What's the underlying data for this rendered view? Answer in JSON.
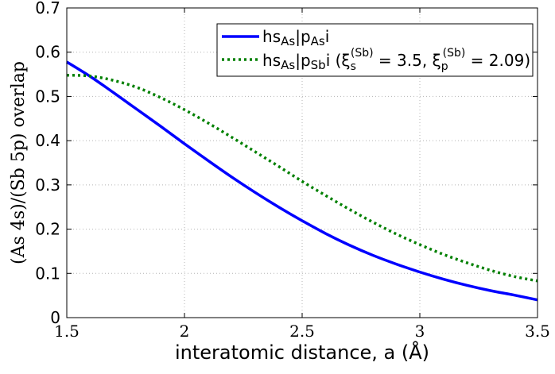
{
  "chart_data": {
    "type": "line",
    "xlabel": "interatomic distance, a (Å)",
    "ylabel": "(As 4s)/(Sb 5p) overlap",
    "xlim": [
      1.5,
      3.5
    ],
    "ylim": [
      0,
      0.7
    ],
    "x_ticks": [
      "1.5",
      "2",
      "2.5",
      "3",
      "3.5"
    ],
    "y_ticks": [
      "0",
      "0.1",
      "0.2",
      "0.3",
      "0.4",
      "0.5",
      "0.6",
      "0.7"
    ],
    "grid": true,
    "legend_position": "top-right",
    "series": [
      {
        "name": "hsAs|pAsi",
        "color": "#0000ff",
        "style": "solid",
        "x": [
          1.5,
          1.6,
          1.7,
          1.8,
          1.9,
          2.0,
          2.1,
          2.2,
          2.3,
          2.4,
          2.5,
          2.6,
          2.7,
          2.8,
          2.9,
          3.0,
          3.1,
          3.2,
          3.3,
          3.4,
          3.5
        ],
        "y": [
          0.578,
          0.545,
          0.508,
          0.47,
          0.432,
          0.393,
          0.355,
          0.318,
          0.283,
          0.25,
          0.219,
          0.19,
          0.164,
          0.141,
          0.121,
          0.103,
          0.087,
          0.073,
          0.061,
          0.051,
          0.04
        ]
      },
      {
        "name": "hsAs|pSbi (ξs(Sb) = 3.5, ξp(Sb) = 2.09)",
        "color": "#008000",
        "style": "dotted",
        "x": [
          1.5,
          1.6,
          1.7,
          1.8,
          1.9,
          2.0,
          2.1,
          2.2,
          2.3,
          2.4,
          2.5,
          2.6,
          2.7,
          2.8,
          2.9,
          3.0,
          3.1,
          3.2,
          3.3,
          3.4,
          3.5
        ],
        "y": [
          0.548,
          0.546,
          0.536,
          0.52,
          0.497,
          0.47,
          0.44,
          0.408,
          0.375,
          0.342,
          0.308,
          0.276,
          0.245,
          0.216,
          0.189,
          0.165,
          0.143,
          0.124,
          0.107,
          0.093,
          0.083
        ]
      }
    ]
  },
  "legend": {
    "entry1": {
      "h": "h",
      "s": "s",
      "sub1": "As",
      "bar": "|",
      "p": "p",
      "sub2": "As",
      "close": "i"
    },
    "entry2": {
      "h": "h",
      "s": "s",
      "sub1": "As",
      "bar": "|",
      "p": "p",
      "sub2": "Sb",
      "close": "i (",
      "xi1": "ξ",
      "xi1_sub": "s",
      "xi1_sup": "(Sb)",
      "xi1_val": " = 3.5, ",
      "xi2": "ξ",
      "xi2_sub": "p",
      "xi2_sup": "(Sb)",
      "xi2_val": " = 2.09)"
    }
  }
}
